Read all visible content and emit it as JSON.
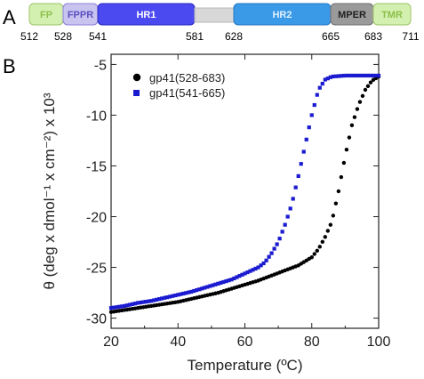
{
  "panel_a": {
    "letter": "A",
    "domains": [
      {
        "label": "FP",
        "start": 512,
        "end": 528,
        "fill": "#d4f0b0",
        "stroke": "#9cc46a",
        "text_color": "#8cc04a"
      },
      {
        "label": "FPPR",
        "start": 528,
        "end": 541,
        "fill": "#c9c3ef",
        "stroke": "#8a80d8",
        "text_color": "#5a4fc0"
      },
      {
        "label": "HR1",
        "start": 541,
        "end": 581,
        "fill": "#4a4af0",
        "stroke": "#2a2ac0",
        "text_color": "#ffffff"
      },
      {
        "label": "",
        "start": 581,
        "end": 628,
        "fill": "#d8d8d8",
        "stroke": "#b8b8b8",
        "text_color": "#000000"
      },
      {
        "label": "HR2",
        "start": 628,
        "end": 665,
        "fill": "#3a9ae8",
        "stroke": "#2a78c0",
        "text_color": "#e0f0ff"
      },
      {
        "label": "MPER",
        "start": 665,
        "end": 683,
        "fill": "#9a9a9a",
        "stroke": "#707070",
        "text_color": "#202020"
      },
      {
        "label": "TMR",
        "start": 683,
        "end": 711,
        "fill": "#d4f0b0",
        "stroke": "#9cc46a",
        "text_color": "#8cc04a"
      }
    ],
    "positions": [
      "512",
      "528",
      "541",
      "581",
      "628",
      "665",
      "683",
      "711"
    ]
  },
  "panel_b": {
    "letter": "B"
  },
  "chart_data": {
    "type": "scatter",
    "xlabel": "Temperature (ºC)",
    "ylabel": "θ (deg x dmol⁻¹ x cm⁻²) x 10³",
    "xlim": [
      20,
      100
    ],
    "ylim": [
      -31,
      -4
    ],
    "x_ticks": [
      "20",
      "40",
      "60",
      "80",
      "100"
    ],
    "y_ticks": [
      "-5",
      "-10",
      "-15",
      "-20",
      "-25",
      "-30"
    ],
    "legend_position": "top-left",
    "series": [
      {
        "name": "gp41(528-683)",
        "marker": "circle",
        "color": "#000000",
        "points": [
          [
            20,
            -29.4
          ],
          [
            24,
            -29.2
          ],
          [
            28,
            -29.0
          ],
          [
            32,
            -28.8
          ],
          [
            36,
            -28.6
          ],
          [
            40,
            -28.4
          ],
          [
            44,
            -28.1
          ],
          [
            48,
            -27.8
          ],
          [
            52,
            -27.5
          ],
          [
            56,
            -27.1
          ],
          [
            60,
            -26.7
          ],
          [
            64,
            -26.3
          ],
          [
            68,
            -25.8
          ],
          [
            72,
            -25.3
          ],
          [
            76,
            -24.8
          ],
          [
            80,
            -24.0
          ],
          [
            82,
            -23.2
          ],
          [
            84,
            -22.0
          ],
          [
            86,
            -20.5
          ],
          [
            88,
            -17.5
          ],
          [
            90,
            -14.0
          ],
          [
            92,
            -11.0
          ],
          [
            94,
            -9.0
          ],
          [
            96,
            -7.5
          ],
          [
            98,
            -6.6
          ],
          [
            100,
            -6.2
          ]
        ]
      },
      {
        "name": "gp41(541-665)",
        "marker": "square",
        "color": "#1a1ad0",
        "points": [
          [
            20,
            -29.0
          ],
          [
            24,
            -28.8
          ],
          [
            28,
            -28.5
          ],
          [
            32,
            -28.3
          ],
          [
            36,
            -28.0
          ],
          [
            40,
            -27.7
          ],
          [
            44,
            -27.4
          ],
          [
            48,
            -27.0
          ],
          [
            52,
            -26.6
          ],
          [
            56,
            -26.2
          ],
          [
            60,
            -25.6
          ],
          [
            64,
            -25.0
          ],
          [
            66,
            -24.5
          ],
          [
            68,
            -23.6
          ],
          [
            70,
            -22.5
          ],
          [
            72,
            -20.8
          ],
          [
            74,
            -18.8
          ],
          [
            76,
            -16.0
          ],
          [
            78,
            -13.0
          ],
          [
            80,
            -10.0
          ],
          [
            82,
            -7.5
          ],
          [
            84,
            -6.5
          ],
          [
            86,
            -6.2
          ],
          [
            90,
            -6.1
          ],
          [
            95,
            -6.1
          ],
          [
            100,
            -6.1
          ]
        ]
      }
    ]
  }
}
